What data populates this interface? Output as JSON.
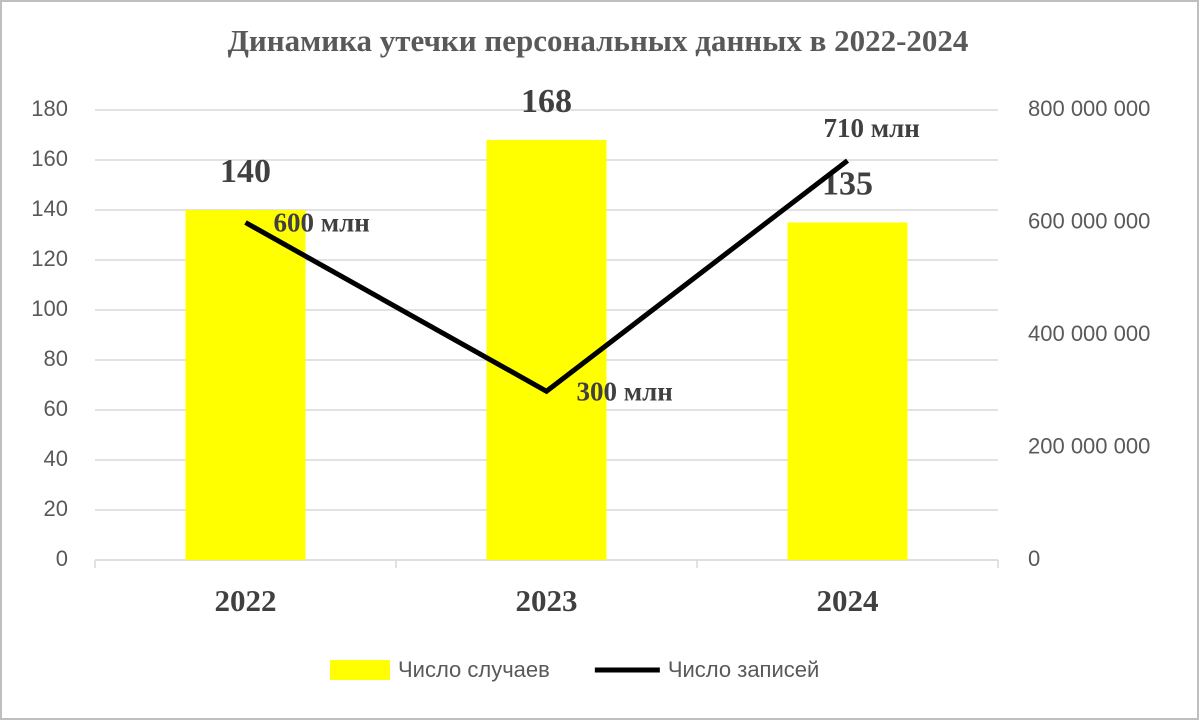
{
  "chart_data": {
    "type": "combo",
    "title": "Динамика утечки персональных данных в 2022-2024",
    "categories": [
      "2022",
      "2023",
      "2024"
    ],
    "series": [
      {
        "name": "Число случаев",
        "type": "bar",
        "color": "#ffff00",
        "values": [
          140,
          168,
          135
        ]
      },
      {
        "name": "Число записей",
        "type": "line",
        "axis": "y2",
        "color": "#000000",
        "values": [
          600000000,
          300000000,
          710000000
        ],
        "value_labels": [
          "600 млн",
          "300 млн",
          "710 млн"
        ]
      }
    ],
    "ylim": [
      0,
      180
    ],
    "yticks": [
      0,
      20,
      40,
      60,
      80,
      100,
      120,
      140,
      160,
      180
    ],
    "y2lim": [
      0,
      800000000
    ],
    "y2ticks": [
      0,
      {
        "value": 200000000,
        "label": "200 000 000"
      },
      {
        "value": 400000000,
        "label": "400 000 000"
      },
      {
        "value": 600000000,
        "label": "600 000 000"
      },
      {
        "value": 800000000,
        "label": "800 000 000"
      }
    ],
    "grid": true,
    "legend": "bottom"
  }
}
